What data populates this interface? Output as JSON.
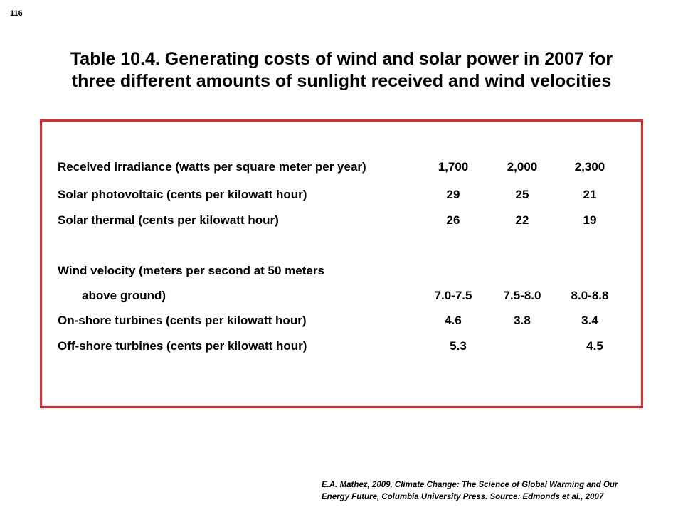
{
  "page_number": "116",
  "title": {
    "line1": "Table 10.4.  Generating costs of wind and solar power in 2007 for",
    "line2": "three different amounts of sunlight received and wind velocities"
  },
  "table": {
    "rows": [
      {
        "label": "Received irradiance (watts per square meter per year)",
        "values": [
          "1,700",
          "2,000",
          "2,300"
        ]
      },
      {
        "label": "Solar photovoltaic (cents per kilowatt hour)",
        "values": [
          "29",
          "25",
          "21"
        ]
      },
      {
        "label": "Solar thermal (cents per kilowatt hour)",
        "values": [
          "26",
          "22",
          "19"
        ]
      },
      {
        "label": "Wind velocity (meters per second at 50 meters",
        "values": [
          "",
          "",
          ""
        ]
      },
      {
        "label": "above ground)",
        "values": [
          "7.0-7.5",
          "7.5-8.0",
          "8.0-8.8"
        ]
      },
      {
        "label": "On-shore turbines (cents per kilowatt hour)",
        "values": [
          "4.6",
          "3.8",
          "3.4"
        ]
      },
      {
        "label": "Off-shore turbines (cents per kilowatt hour)",
        "values": [
          "5.3",
          "",
          "4.5"
        ]
      }
    ]
  },
  "citation": {
    "line1": "E.A. Mathez, 2009, Climate Change: The Science of Global Warming and Our",
    "line2": "Energy Future, Columbia University Press.  Source: Edmonds et al., 2007"
  },
  "colors": {
    "frame_border": "#e8262a",
    "text": "#000000",
    "background": "#ffffff"
  }
}
